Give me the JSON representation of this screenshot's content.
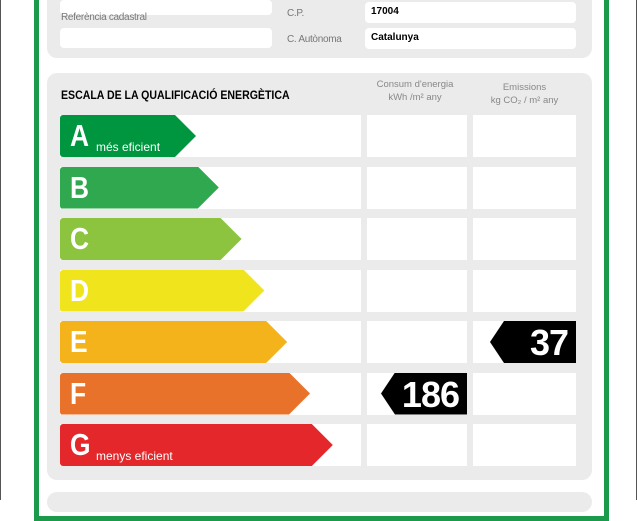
{
  "location": {
    "cadastral_label": "Referència cadastral",
    "cadastral_value": "",
    "cp_label": "C.P.",
    "cp_value": "17004",
    "region_label": "C. Autònoma",
    "region_value": "Catalunya"
  },
  "scale": {
    "title": "ESCALA DE LA QUALIFICACIÓ ENERGÈTICA",
    "consumption_header": "Consum d'energia",
    "consumption_unit": "kWh /m² any",
    "emissions_header": "Emissions",
    "emissions_unit": "kg CO₂ / m² any",
    "ratings": [
      {
        "letter": "A",
        "label": "més eficient",
        "color": "#00963f"
      },
      {
        "letter": "B",
        "label": "",
        "color": "#2fa84f"
      },
      {
        "letter": "C",
        "label": "",
        "color": "#8cc43f"
      },
      {
        "letter": "D",
        "label": "",
        "color": "#f0e51c"
      },
      {
        "letter": "E",
        "label": "",
        "color": "#f4b21b"
      },
      {
        "letter": "F",
        "label": "",
        "color": "#e8722a"
      },
      {
        "letter": "G",
        "label": "menys eficient",
        "color": "#e3272b"
      }
    ],
    "consumption": {
      "rating": "F",
      "value": "186"
    },
    "emissions": {
      "rating": "E",
      "value": "37"
    }
  }
}
